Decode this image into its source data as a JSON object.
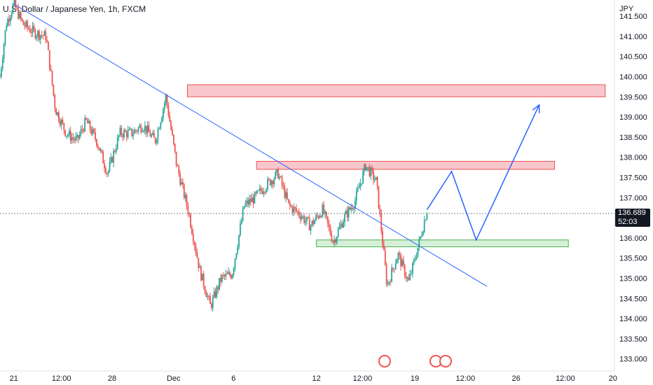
{
  "title": "U.S. Dollar / Japanese Yen, 1h, FXCM",
  "currency_label": "JPY",
  "last_price": "136.689",
  "countdown": "52:03",
  "colors": {
    "up": "#26a69a",
    "down": "#ef5350",
    "trendline": "#2962ff",
    "resistance_fill": "#f8c7cc",
    "resistance_stroke": "#ef5350",
    "support_fill": "#d6f0d8",
    "support_stroke": "#4caf50",
    "projection": "#2962ff"
  },
  "chart_data": {
    "type": "candlestick",
    "y_ticks": [
      "141.500",
      "141.000",
      "140.500",
      "140.000",
      "139.500",
      "139.000",
      "138.500",
      "138.000",
      "137.500",
      "137.000",
      "136.000",
      "135.500",
      "135.000",
      "134.500",
      "134.000",
      "133.500",
      "133.000"
    ],
    "x_ticks": [
      "21",
      "12:00",
      "28",
      "Dec",
      "6",
      "12",
      "12:00",
      "19",
      "12:00",
      "26",
      "12:00",
      "20"
    ],
    "ylim": [
      132.7,
      141.9
    ],
    "price_path": [
      [
        0,
        140.0
      ],
      [
        0.4,
        141.3
      ],
      [
        0.9,
        141.8
      ],
      [
        1.5,
        141.3
      ],
      [
        2.2,
        141.1
      ],
      [
        3.0,
        141.0
      ],
      [
        3.6,
        139.2
      ],
      [
        4.3,
        138.6
      ],
      [
        5.0,
        138.4
      ],
      [
        5.6,
        138.9
      ],
      [
        6.3,
        138.4
      ],
      [
        7.0,
        137.6
      ],
      [
        7.8,
        138.6
      ],
      [
        8.6,
        138.6
      ],
      [
        9.3,
        138.8
      ],
      [
        10.1,
        138.4
      ],
      [
        10.8,
        139.5
      ],
      [
        11.5,
        137.8
      ],
      [
        12.3,
        136.6
      ],
      [
        13.0,
        135.2
      ],
      [
        13.7,
        134.3
      ],
      [
        14.4,
        135.0
      ],
      [
        15.1,
        135.1
      ],
      [
        15.9,
        136.8
      ],
      [
        16.6,
        137.0
      ],
      [
        17.3,
        137.3
      ],
      [
        18.1,
        137.6
      ],
      [
        18.8,
        136.8
      ],
      [
        19.5,
        136.6
      ],
      [
        20.2,
        136.3
      ],
      [
        21.0,
        136.7
      ],
      [
        21.7,
        135.9
      ],
      [
        22.4,
        136.5
      ],
      [
        23.1,
        136.9
      ],
      [
        23.8,
        137.8
      ],
      [
        24.5,
        137.4
      ],
      [
        25.2,
        134.8
      ],
      [
        25.9,
        135.6
      ],
      [
        26.6,
        134.9
      ],
      [
        27.3,
        135.9
      ],
      [
        27.8,
        136.7
      ]
    ],
    "trendline": {
      "start": [
        0.9,
        141.8
      ],
      "end": [
        31.7,
        134.8
      ]
    },
    "resistance_zones": [
      {
        "x_start": 12.2,
        "x_end": 39.4,
        "top": 139.8,
        "bottom": 139.5
      },
      {
        "x_start": 16.7,
        "x_end": 36.1,
        "top": 137.9,
        "bottom": 137.7
      }
    ],
    "support_zone": {
      "x_start": 20.6,
      "x_end": 37.0,
      "top": 135.95,
      "bottom": 135.78
    },
    "projection_path": [
      [
        27.8,
        136.7
      ],
      [
        29.4,
        137.65
      ],
      [
        31.0,
        135.95
      ],
      [
        35.1,
        139.3
      ]
    ]
  }
}
